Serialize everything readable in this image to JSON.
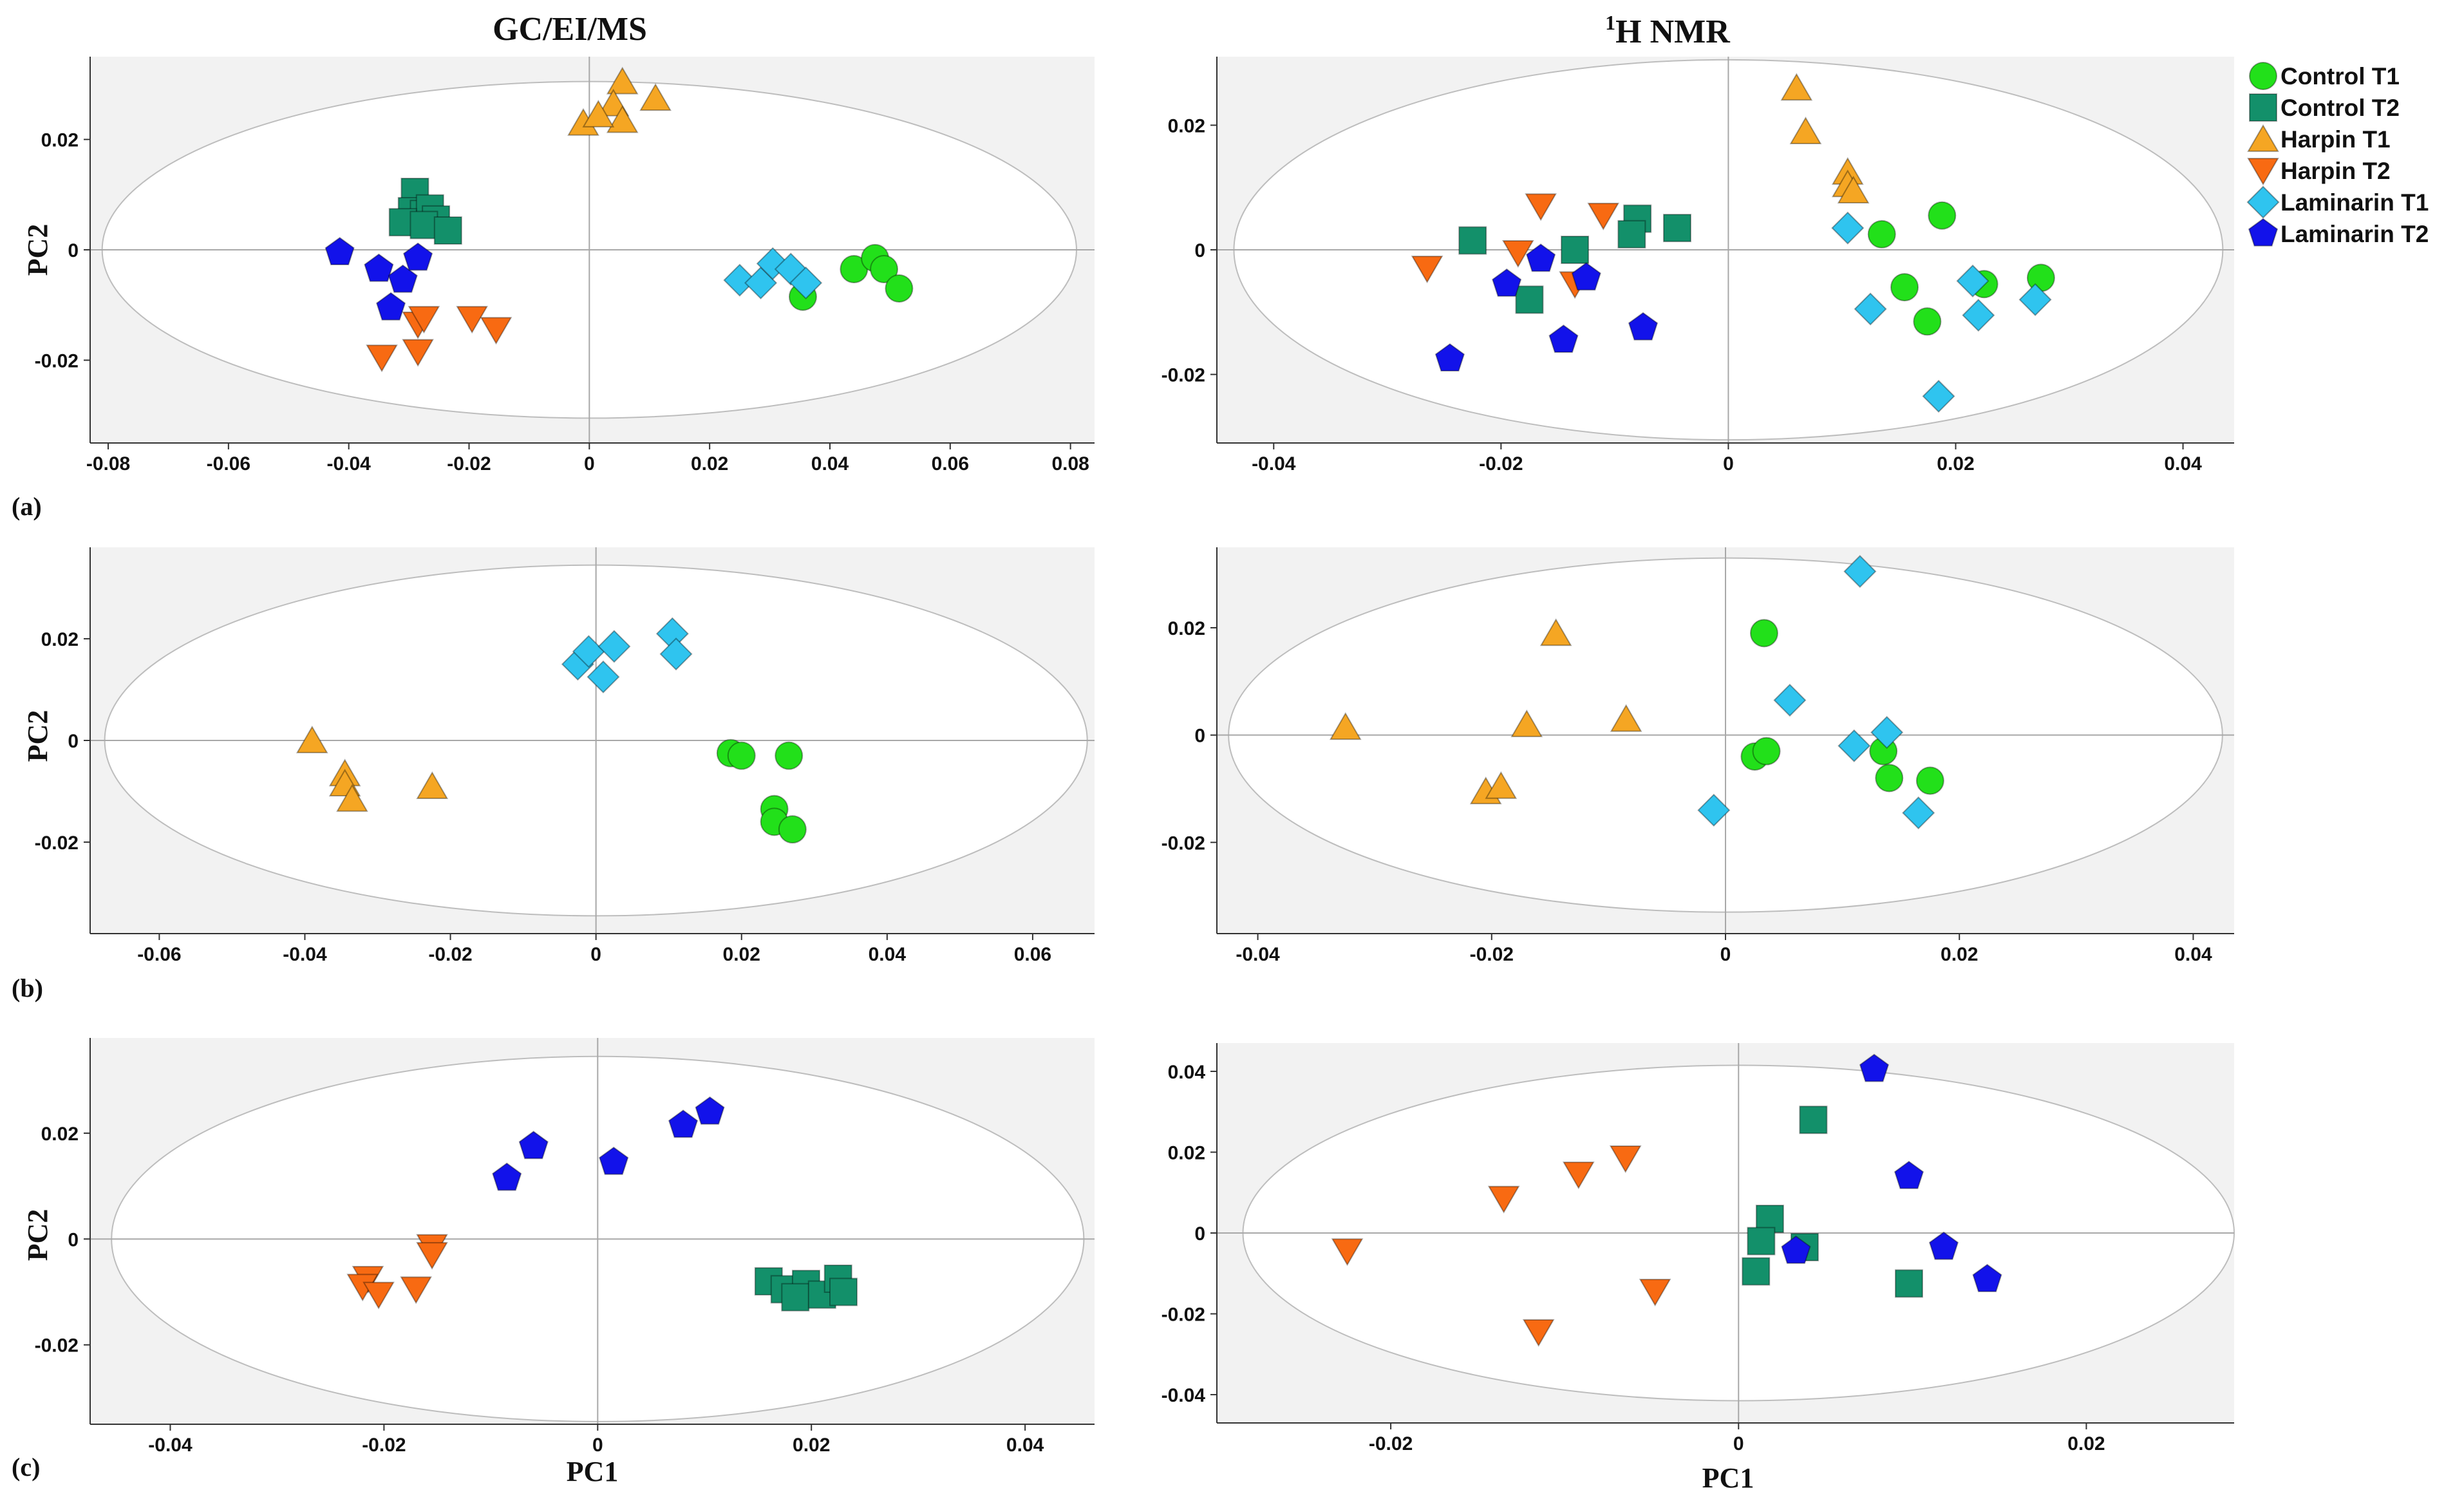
{
  "figure": {
    "col_titles": {
      "left": "GC/EI/MS",
      "right_sup": "1",
      "right": "H NMR"
    },
    "row_labels": [
      "(a)",
      "(b)",
      "(c)"
    ],
    "axis": {
      "y": "PC2",
      "x": "PC1"
    }
  },
  "legend": [
    {
      "key": "ct1",
      "label": "Control T1",
      "color": "#22e01a",
      "shape": "circle"
    },
    {
      "key": "ct2",
      "label": "Control T2",
      "color": "#13906a",
      "shape": "square"
    },
    {
      "key": "ht1",
      "label": "Harpin T1",
      "color": "#f5a623",
      "shape": "triangle-up"
    },
    {
      "key": "ht2",
      "label": "Harpin T2",
      "color": "#f86a12",
      "shape": "triangle-down"
    },
    {
      "key": "lt1",
      "label": "Laminarin T1",
      "color": "#2fc4ef",
      "shape": "diamond"
    },
    {
      "key": "lt2",
      "label": "Laminarin T2",
      "color": "#1212ea",
      "shape": "pentagon"
    }
  ],
  "chart_data": [
    {
      "id": "a-gc",
      "type": "scatter",
      "title": "GC/EI/MS",
      "panel": "(a)",
      "xlabel": "",
      "ylabel": "PC2",
      "xlim": [
        -0.083,
        0.084
      ],
      "ylim": [
        -0.035,
        0.035
      ],
      "xticks": [
        -0.08,
        -0.06,
        -0.04,
        -0.02,
        0,
        0.02,
        0.04,
        0.06,
        0.08
      ],
      "xtick_labels": [
        "-0.08",
        "-0.06",
        "-0.04",
        "-0.02",
        "0",
        "0.02",
        "0.04",
        "0.06",
        "0.08"
      ],
      "yticks": [
        0.02,
        0,
        -0.02
      ],
      "ytick_labels": [
        "0.02",
        "0",
        "-0.02"
      ],
      "ellipse": {
        "rx": 0.081,
        "ry": 0.0305
      },
      "series": [
        {
          "key": "ct1",
          "points": [
            [
              0.044,
              -0.0035
            ],
            [
              0.0475,
              -0.0015
            ],
            [
              0.049,
              -0.0035
            ],
            [
              0.0515,
              -0.007
            ],
            [
              0.0355,
              -0.0085
            ]
          ]
        },
        {
          "key": "ct2",
          "points": [
            [
              -0.029,
              0.0105
            ],
            [
              -0.0295,
              0.007
            ],
            [
              -0.0275,
              0.0065
            ],
            [
              -0.0265,
              0.0075
            ],
            [
              -0.0255,
              0.0055
            ],
            [
              -0.031,
              0.005
            ],
            [
              -0.0275,
              0.0045
            ],
            [
              -0.0235,
              0.0035
            ]
          ]
        },
        {
          "key": "ht1",
          "points": [
            [
              0.0055,
              0.0305
            ],
            [
              0.011,
              0.0275
            ],
            [
              0.004,
              0.0265
            ],
            [
              0.0055,
              0.0235
            ],
            [
              -0.001,
              0.023
            ],
            [
              0.0015,
              0.0245
            ]
          ]
        },
        {
          "key": "ht2",
          "points": [
            [
              -0.0285,
              -0.0135
            ],
            [
              -0.0275,
              -0.0125
            ],
            [
              -0.0195,
              -0.0125
            ],
            [
              -0.0155,
              -0.0145
            ],
            [
              -0.0285,
              -0.0185
            ],
            [
              -0.0345,
              -0.0195
            ]
          ]
        },
        {
          "key": "lt1",
          "points": [
            [
              0.025,
              -0.0055
            ],
            [
              0.0285,
              -0.006
            ],
            [
              0.0305,
              -0.0025
            ],
            [
              0.0335,
              -0.0035
            ],
            [
              0.036,
              -0.006
            ]
          ]
        },
        {
          "key": "lt2",
          "points": [
            [
              -0.0415,
              -0.0005
            ],
            [
              -0.035,
              -0.0035
            ],
            [
              -0.031,
              -0.0055
            ],
            [
              -0.0285,
              -0.0015
            ],
            [
              -0.033,
              -0.0105
            ]
          ]
        }
      ]
    },
    {
      "id": "a-nmr",
      "type": "scatter",
      "title": "1H NMR",
      "panel": "(a)",
      "xlabel": "",
      "ylabel": "",
      "xlim": [
        -0.045,
        0.0445
      ],
      "ylim": [
        -0.031,
        0.031
      ],
      "xticks": [
        -0.04,
        -0.02,
        0,
        0.02,
        0.04
      ],
      "xtick_labels": [
        "-0.04",
        "-0.02",
        "0",
        "0.02",
        "0.04"
      ],
      "yticks": [
        0.02,
        0,
        -0.02
      ],
      "ytick_labels": [
        "0.02",
        "0",
        "-0.02"
      ],
      "ellipse": {
        "rx": 0.0435,
        "ry": 0.0305
      },
      "series": [
        {
          "key": "ct1",
          "points": [
            [
              0.0188,
              0.0055
            ],
            [
              0.0135,
              0.0025
            ],
            [
              0.0155,
              -0.006
            ],
            [
              0.0175,
              -0.0115
            ],
            [
              0.0225,
              -0.0055
            ],
            [
              0.0275,
              -0.0045
            ]
          ]
        },
        {
          "key": "ct2",
          "points": [
            [
              -0.0225,
              0.0015
            ],
            [
              -0.0135,
              0.0
            ],
            [
              -0.008,
              0.005
            ],
            [
              -0.0085,
              0.0025
            ],
            [
              -0.0045,
              0.0035
            ],
            [
              -0.0175,
              -0.008
            ]
          ]
        },
        {
          "key": "ht1",
          "points": [
            [
              0.006,
              0.026
            ],
            [
              0.0068,
              0.019
            ],
            [
              0.0105,
              0.0125
            ],
            [
              0.0105,
              0.0105
            ],
            [
              0.011,
              0.0095
            ]
          ]
        },
        {
          "key": "ht2",
          "points": [
            [
              -0.0165,
              0.007
            ],
            [
              -0.011,
              0.0055
            ],
            [
              -0.0265,
              -0.003
            ],
            [
              -0.0185,
              -0.0005
            ],
            [
              -0.0135,
              -0.0055
            ]
          ]
        },
        {
          "key": "lt1",
          "points": [
            [
              0.0105,
              0.0035
            ],
            [
              0.0125,
              -0.0095
            ],
            [
              0.0215,
              -0.005
            ],
            [
              0.022,
              -0.0105
            ],
            [
              0.027,
              -0.008
            ],
            [
              0.0185,
              -0.0235
            ]
          ]
        },
        {
          "key": "lt2",
          "points": [
            [
              -0.0195,
              -0.0055
            ],
            [
              -0.0165,
              -0.0015
            ],
            [
              -0.0125,
              -0.0045
            ],
            [
              -0.0145,
              -0.0145
            ],
            [
              -0.0075,
              -0.0125
            ],
            [
              -0.0245,
              -0.0175
            ]
          ]
        }
      ]
    },
    {
      "id": "b-gc",
      "type": "scatter",
      "title": "GC/EI/MS",
      "panel": "(b)",
      "xlabel": "",
      "ylabel": "PC2",
      "xlim": [
        -0.0695,
        0.0685
      ],
      "ylim": [
        -0.038,
        0.038
      ],
      "xticks": [
        -0.06,
        -0.04,
        -0.02,
        0,
        0.02,
        0.04,
        0.06
      ],
      "xtick_labels": [
        "-0.06",
        "-0.04",
        "-0.02",
        "0",
        "0.02",
        "0.04",
        "0.06"
      ],
      "yticks": [
        0.02,
        0,
        -0.02
      ],
      "ytick_labels": [
        "0.02",
        "0",
        "-0.02"
      ],
      "ellipse": {
        "rx": 0.0675,
        "ry": 0.0345
      },
      "series": [
        {
          "key": "ct1",
          "points": [
            [
              0.0185,
              -0.0025
            ],
            [
              0.02,
              -0.003
            ],
            [
              0.0265,
              -0.003
            ],
            [
              0.0245,
              -0.0135
            ],
            [
              0.0245,
              -0.016
            ],
            [
              0.027,
              -0.0175
            ]
          ]
        },
        {
          "key": "ht1",
          "points": [
            [
              -0.039,
              0.0
            ],
            [
              -0.0345,
              -0.0065
            ],
            [
              -0.0345,
              -0.0085
            ],
            [
              -0.0335,
              -0.0115
            ],
            [
              -0.0225,
              -0.009
            ]
          ]
        },
        {
          "key": "lt1",
          "points": [
            [
              -0.0025,
              0.015
            ],
            [
              -0.001,
              0.0175
            ],
            [
              0.0025,
              0.0185
            ],
            [
              0.001,
              0.0125
            ],
            [
              0.0105,
              0.021
            ],
            [
              0.011,
              0.017
            ]
          ]
        }
      ]
    },
    {
      "id": "b-nmr",
      "type": "scatter",
      "title": "1H NMR",
      "panel": "(b)",
      "xlabel": "",
      "ylabel": "",
      "xlim": [
        -0.0435,
        0.0435
      ],
      "ylim": [
        -0.037,
        0.035
      ],
      "xticks": [
        -0.04,
        -0.02,
        0,
        0.02,
        0.04
      ],
      "xtick_labels": [
        "-0.04",
        "-0.02",
        "0",
        "0.02",
        "0.04"
      ],
      "yticks": [
        0.02,
        0,
        -0.02
      ],
      "ytick_labels": [
        "0.02",
        "0",
        "-0.02"
      ],
      "ellipse": {
        "rx": 0.0425,
        "ry": 0.033
      },
      "series": [
        {
          "key": "ct1",
          "points": [
            [
              0.0033,
              0.019
            ],
            [
              0.0025,
              -0.004
            ],
            [
              0.0035,
              -0.003
            ],
            [
              0.0135,
              -0.003
            ],
            [
              0.014,
              -0.008
            ],
            [
              0.0175,
              -0.0085
            ]
          ]
        },
        {
          "key": "ht1",
          "points": [
            [
              -0.0325,
              0.0015
            ],
            [
              -0.0145,
              0.019
            ],
            [
              -0.017,
              0.002
            ],
            [
              -0.0085,
              0.003
            ],
            [
              -0.0205,
              -0.0105
            ],
            [
              -0.0192,
              -0.0095
            ]
          ]
        },
        {
          "key": "lt1",
          "points": [
            [
              0.0115,
              0.0305
            ],
            [
              0.0055,
              0.0065
            ],
            [
              0.011,
              -0.002
            ],
            [
              0.0138,
              0.0005
            ],
            [
              0.0165,
              -0.0145
            ],
            [
              -0.001,
              -0.014
            ]
          ]
        }
      ]
    },
    {
      "id": "c-gc",
      "type": "scatter",
      "title": "GC/EI/MS",
      "panel": "(c)",
      "xlabel": "PC1",
      "ylabel": "PC2",
      "xlim": [
        -0.0475,
        0.0465
      ],
      "ylim": [
        -0.035,
        0.038
      ],
      "xticks": [
        -0.04,
        -0.02,
        0,
        0.02,
        0.04
      ],
      "xtick_labels": [
        "-0.04",
        "-0.02",
        "0",
        "0.02",
        "0.04"
      ],
      "yticks": [
        0.02,
        0,
        -0.02
      ],
      "ytick_labels": [
        "0.02",
        "0",
        "-0.02"
      ],
      "ellipse": {
        "rx": 0.0455,
        "ry": 0.0345
      },
      "series": [
        {
          "key": "ct2",
          "points": [
            [
              0.016,
              -0.008
            ],
            [
              0.0175,
              -0.0095
            ],
            [
              0.0195,
              -0.0085
            ],
            [
              0.0185,
              -0.011
            ],
            [
              0.021,
              -0.0105
            ],
            [
              0.0225,
              -0.0075
            ],
            [
              0.023,
              -0.01
            ]
          ]
        },
        {
          "key": "ht2",
          "points": [
            [
              -0.0155,
              -0.0015
            ],
            [
              -0.0155,
              -0.003
            ],
            [
              -0.0215,
              -0.0075
            ],
            [
              -0.022,
              -0.009
            ],
            [
              -0.0205,
              -0.0105
            ],
            [
              -0.017,
              -0.0095
            ]
          ]
        },
        {
          "key": "lt2",
          "points": [
            [
              -0.0085,
              0.0115
            ],
            [
              -0.006,
              0.0175
            ],
            [
              0.0015,
              0.0145
            ],
            [
              0.008,
              0.0215
            ],
            [
              0.0105,
              0.024
            ]
          ]
        }
      ]
    },
    {
      "id": "c-nmr",
      "type": "scatter",
      "title": "1H NMR",
      "panel": "(c)",
      "xlabel": "PC1",
      "ylabel": "",
      "xlim": [
        -0.03,
        0.0285
      ],
      "ylim": [
        -0.047,
        0.047
      ],
      "xticks": [
        -0.02,
        0,
        0.02
      ],
      "xtick_labels": [
        "-0.02",
        "0",
        "0.02"
      ],
      "yticks": [
        0.04,
        0.02,
        0,
        -0.02,
        -0.04
      ],
      "ytick_labels": [
        "0.04",
        "0.02",
        "0",
        "-0.02",
        "-0.04"
      ],
      "ellipse": {
        "rx": 0.0285,
        "ry": 0.0415
      },
      "series": [
        {
          "key": "ct2",
          "points": [
            [
              0.0043,
              0.028
            ],
            [
              0.0018,
              0.0035
            ],
            [
              0.0013,
              -0.002
            ],
            [
              0.0038,
              -0.0035
            ],
            [
              0.001,
              -0.0095
            ],
            [
              0.0098,
              -0.0125
            ]
          ]
        },
        {
          "key": "ht2",
          "points": [
            [
              -0.0225,
              -0.0045
            ],
            [
              -0.0135,
              0.0085
            ],
            [
              -0.0092,
              0.0145
            ],
            [
              -0.0065,
              0.0185
            ],
            [
              -0.0048,
              -0.0145
            ],
            [
              -0.0115,
              -0.0245
            ]
          ]
        },
        {
          "key": "lt2",
          "points": [
            [
              0.0078,
              0.0405
            ],
            [
              0.0098,
              0.014
            ],
            [
              0.0118,
              -0.0035
            ],
            [
              0.0143,
              -0.0115
            ],
            [
              0.0033,
              -0.0045
            ]
          ]
        }
      ]
    }
  ]
}
